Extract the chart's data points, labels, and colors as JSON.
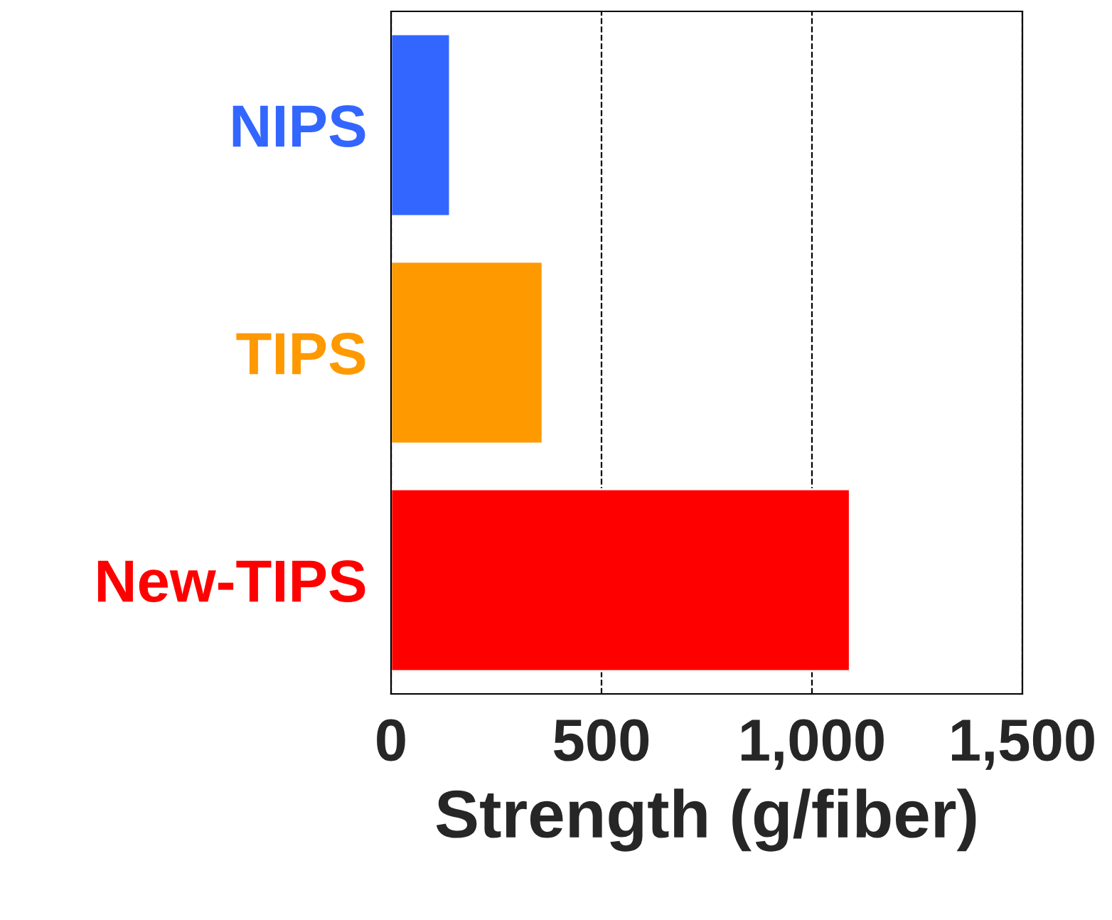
{
  "chart_data": {
    "type": "bar",
    "orientation": "horizontal",
    "categories": [
      "NIPS",
      "TIPS",
      "New-TIPS"
    ],
    "values": [
      140,
      360,
      1090
    ],
    "colors": [
      "#3366ff",
      "#ff9900",
      "#ff0000"
    ],
    "xlabel": "Strength (g/fiber)",
    "xlim": [
      0,
      1500
    ],
    "xticks": [
      {
        "value": 0,
        "label": "0"
      },
      {
        "value": 500,
        "label": "500"
      },
      {
        "value": 1000,
        "label": "1,000"
      },
      {
        "value": 1500,
        "label": "1,500"
      }
    ],
    "grid": "x",
    "line_style": "dashed"
  }
}
